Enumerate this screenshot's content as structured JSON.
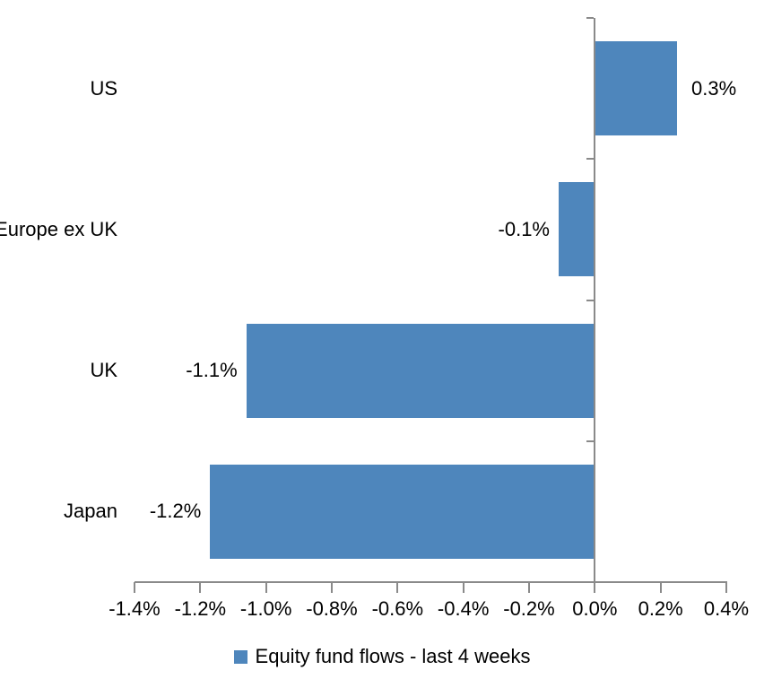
{
  "chart_data": {
    "type": "bar",
    "orientation": "horizontal",
    "title": "",
    "categories": [
      "US",
      "Europe ex UK",
      "UK",
      "Japan"
    ],
    "values": [
      0.3,
      -0.1,
      -1.1,
      -1.2
    ],
    "values_precise": [
      0.25,
      -0.11,
      -1.06,
      -1.17
    ],
    "data_labels": [
      "0.3%",
      "-0.1%",
      "-1.1%",
      "-1.2%"
    ],
    "unit": "%",
    "xlim": [
      -1.4,
      0.4
    ],
    "x_tick_step": 0.2,
    "x_tick_labels": [
      "-1.4%",
      "-1.2%",
      "-1.0%",
      "-0.8%",
      "-0.6%",
      "-0.4%",
      "-0.2%",
      "0.0%",
      "0.2%",
      "0.4%"
    ],
    "grid": false,
    "legend": {
      "label": "Equity fund flows - last 4 weeks",
      "position": "bottom"
    },
    "colors": {
      "bar": "#4E86BC",
      "axis": "#8A8A8A",
      "text": "#000000",
      "background": "#FFFFFF"
    }
  }
}
